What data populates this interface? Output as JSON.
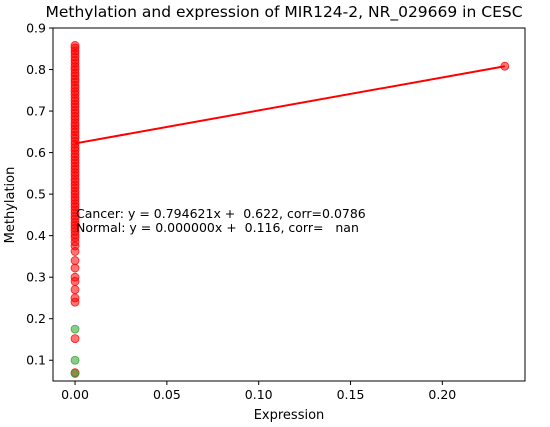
{
  "chart_data": {
    "type": "scatter",
    "title": "Methylation and expression of MIR124-2, NR_029669 in CESC",
    "xlabel": "Expression",
    "ylabel": "Methylation",
    "xlim": [
      -0.012,
      0.245
    ],
    "ylim": [
      0.05,
      0.9
    ],
    "xticks": [
      "0.00",
      "0.05",
      "0.10",
      "0.15",
      "0.20"
    ],
    "xtick_values": [
      0,
      0.05,
      0.1,
      0.15,
      0.2
    ],
    "yticks": [
      "0.1",
      "0.2",
      "0.3",
      "0.4",
      "0.5",
      "0.6",
      "0.7",
      "0.8",
      "0.9"
    ],
    "ytick_values": [
      0.1,
      0.2,
      0.3,
      0.4,
      0.5,
      0.6,
      0.7,
      0.8,
      0.9
    ],
    "grid": false,
    "series": [
      {
        "color": "#ff0000",
        "points": [
          [
            0,
            0.858
          ],
          [
            0,
            0.852
          ],
          [
            0,
            0.845
          ],
          [
            0,
            0.838
          ],
          [
            0,
            0.83
          ],
          [
            0,
            0.822
          ],
          [
            0,
            0.815
          ],
          [
            0,
            0.807
          ],
          [
            0,
            0.8
          ],
          [
            0,
            0.792
          ],
          [
            0,
            0.785
          ],
          [
            0,
            0.777
          ],
          [
            0,
            0.77
          ],
          [
            0,
            0.762
          ],
          [
            0,
            0.755
          ],
          [
            0,
            0.747
          ],
          [
            0,
            0.74
          ],
          [
            0,
            0.732
          ],
          [
            0,
            0.725
          ],
          [
            0,
            0.717
          ],
          [
            0,
            0.71
          ],
          [
            0,
            0.702
          ],
          [
            0,
            0.695
          ],
          [
            0,
            0.687
          ],
          [
            0,
            0.68
          ],
          [
            0,
            0.672
          ],
          [
            0,
            0.665
          ],
          [
            0,
            0.657
          ],
          [
            0,
            0.65
          ],
          [
            0,
            0.642
          ],
          [
            0,
            0.635
          ],
          [
            0,
            0.627
          ],
          [
            0,
            0.62
          ],
          [
            0,
            0.612
          ],
          [
            0,
            0.605
          ],
          [
            0,
            0.597
          ],
          [
            0,
            0.59
          ],
          [
            0,
            0.582
          ],
          [
            0,
            0.575
          ],
          [
            0,
            0.567
          ],
          [
            0,
            0.56
          ],
          [
            0,
            0.552
          ],
          [
            0,
            0.545
          ],
          [
            0,
            0.537
          ],
          [
            0,
            0.53
          ],
          [
            0,
            0.522
          ],
          [
            0,
            0.515
          ],
          [
            0,
            0.507
          ],
          [
            0,
            0.5
          ],
          [
            0,
            0.492
          ],
          [
            0,
            0.485
          ],
          [
            0,
            0.477
          ],
          [
            0,
            0.47
          ],
          [
            0,
            0.462
          ],
          [
            0,
            0.455
          ],
          [
            0,
            0.447
          ],
          [
            0,
            0.44
          ],
          [
            0,
            0.432
          ],
          [
            0,
            0.425
          ],
          [
            0,
            0.418
          ],
          [
            0,
            0.41
          ],
          [
            0,
            0.402
          ],
          [
            0,
            0.395
          ],
          [
            0,
            0.385
          ],
          [
            0,
            0.375
          ],
          [
            0,
            0.362
          ],
          [
            0,
            0.34
          ],
          [
            0,
            0.322
          ],
          [
            0,
            0.3
          ],
          [
            0,
            0.29
          ],
          [
            0,
            0.27
          ],
          [
            0,
            0.25
          ],
          [
            0,
            0.24
          ],
          [
            0,
            0.152
          ],
          [
            0,
            0.07
          ],
          [
            0.234,
            0.808
          ]
        ]
      },
      {
        "color": "#2ca02c",
        "points": [
          [
            0,
            0.175
          ],
          [
            0,
            0.1
          ],
          [
            0,
            0.068
          ]
        ]
      }
    ],
    "regression_line": {
      "color": "#ff0000",
      "slope": 0.794621,
      "intercept": 0.622,
      "x_range": [
        0,
        0.234
      ]
    },
    "annotations": [
      "Cancer: y = 0.794621x +  0.622, corr=0.0786",
      "Normal: y = 0.000000x +  0.116, corr=   nan"
    ]
  }
}
